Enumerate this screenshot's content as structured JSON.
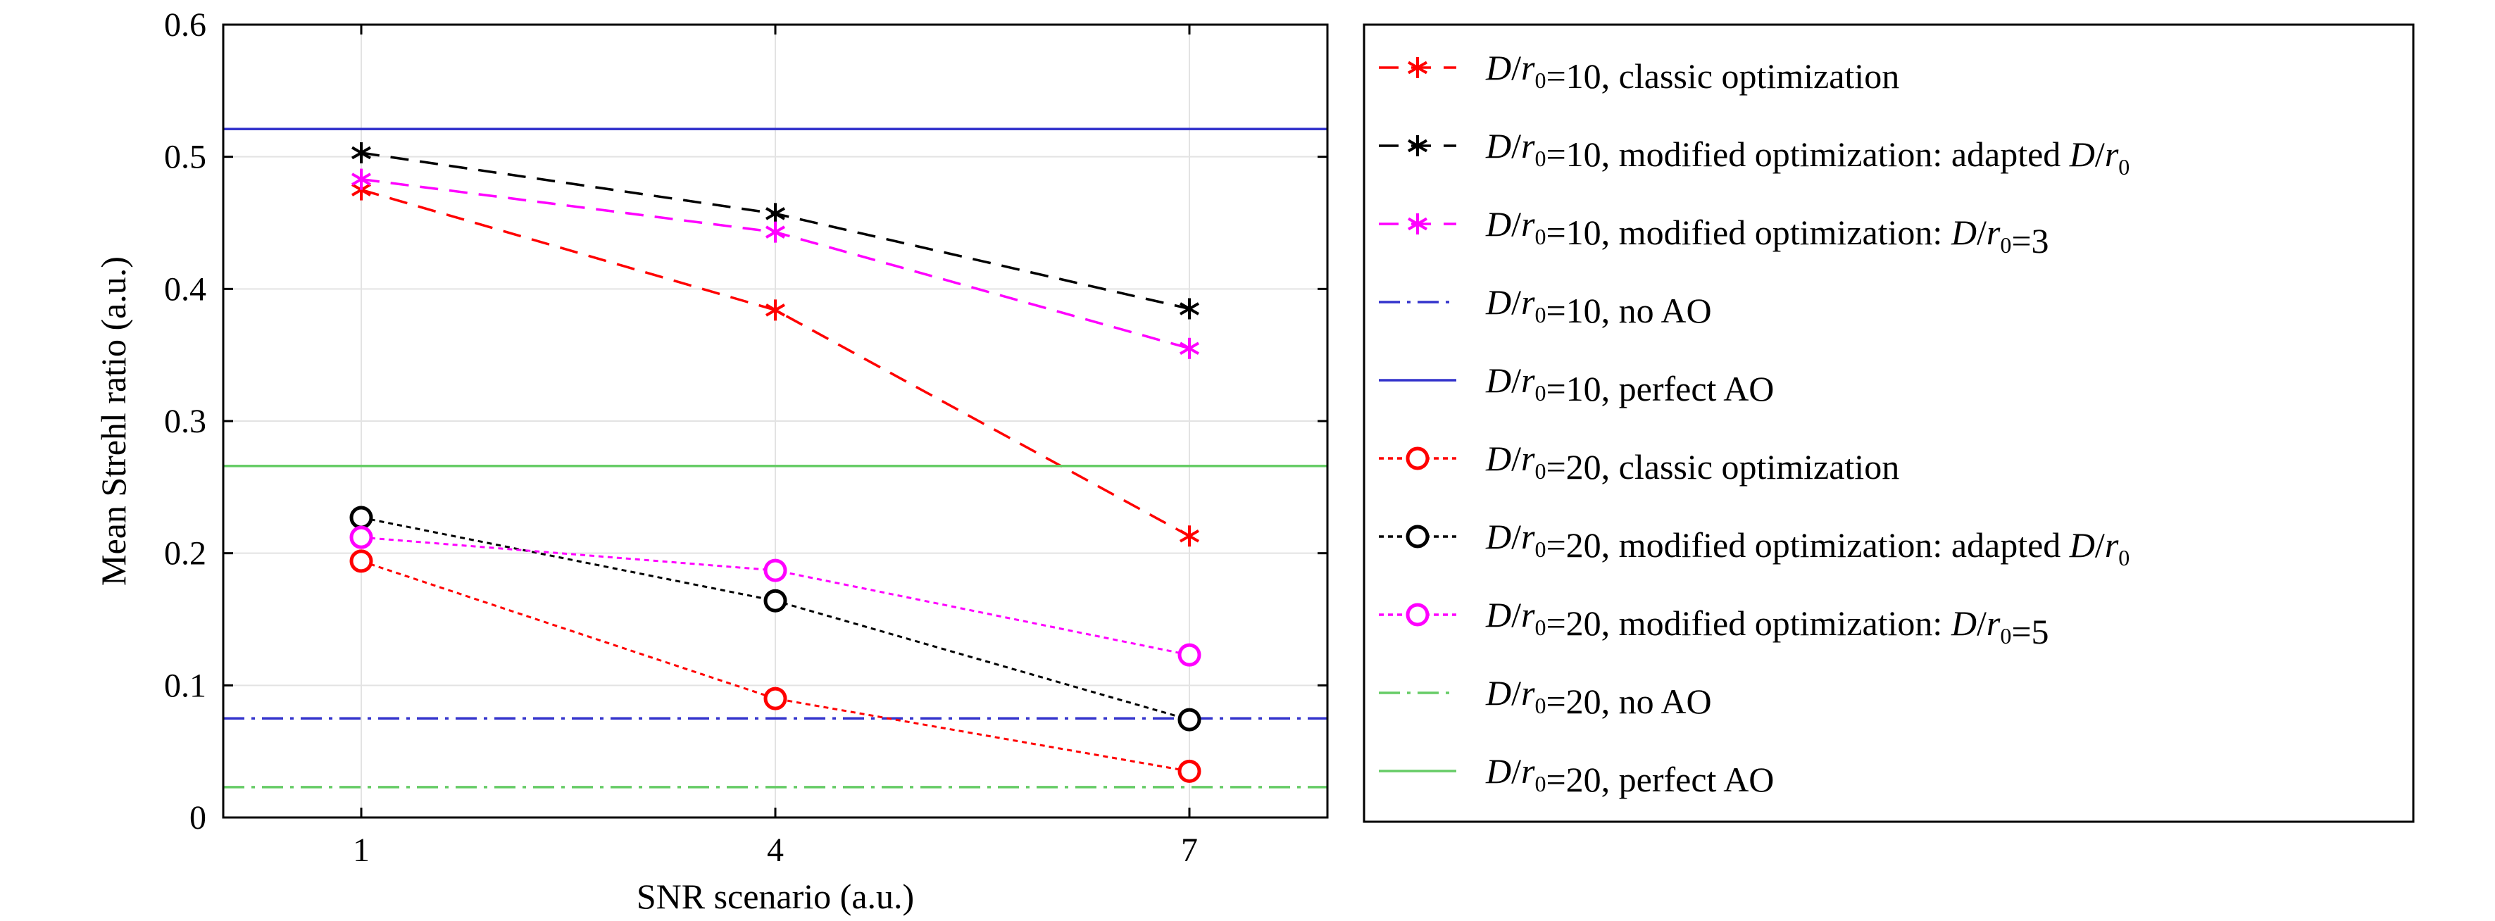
{
  "chart_data": {
    "type": "line",
    "xlabel": "SNR scenario (a.u.)",
    "ylabel": "Mean Strehl ratio (a.u.)",
    "xlim": [
      0,
      8
    ],
    "ylim": [
      0,
      0.6
    ],
    "xticks": [
      1,
      4,
      7
    ],
    "yticks": [
      0,
      0.1,
      0.2,
      0.3,
      0.4,
      0.5,
      0.6
    ],
    "ytick_labels": [
      "0",
      "0.1",
      "0.2",
      "0.3",
      "0.4",
      "0.5",
      "0.6"
    ],
    "grid": true,
    "legend_position": "outside-right",
    "x": [
      1,
      4,
      7
    ],
    "series": [
      {
        "name_parts": [
          "D",
          "/",
          "r",
          "0",
          "=10, classic optimization"
        ],
        "values": [
          0.475,
          0.384,
          0.213
        ],
        "color": "#ff0000",
        "linestyle": "dashed",
        "marker": "asterisk"
      },
      {
        "name_parts": [
          "D",
          "/",
          "r",
          "0",
          "=10, modified optimization: adapted ",
          "D",
          "/",
          "r",
          "0"
        ],
        "values": [
          0.503,
          0.457,
          0.385
        ],
        "color": "#000000",
        "linestyle": "dashed",
        "marker": "asterisk"
      },
      {
        "name_parts": [
          "D",
          "/",
          "r",
          "0",
          "=10, modified optimization: ",
          "D",
          "/",
          "r",
          "0",
          "=3"
        ],
        "values": [
          0.483,
          0.443,
          0.355
        ],
        "color": "#ff00ff",
        "linestyle": "dashed",
        "marker": "asterisk"
      },
      {
        "name_parts": [
          "D",
          "/",
          "r",
          "0",
          "=10, no AO"
        ],
        "constant": 0.075,
        "color": "#3333cc",
        "linestyle": "dashdot",
        "marker": "none"
      },
      {
        "name_parts": [
          "D",
          "/",
          "r",
          "0",
          "=10, perfect AO"
        ],
        "constant": 0.521,
        "color": "#3333cc",
        "linestyle": "solid",
        "marker": "none"
      },
      {
        "name_parts": [
          "D",
          "/",
          "r",
          "0",
          "=20, classic optimization"
        ],
        "values": [
          0.194,
          0.09,
          0.035
        ],
        "color": "#ff0000",
        "linestyle": "dotted",
        "marker": "circle"
      },
      {
        "name_parts": [
          "D",
          "/",
          "r",
          "0",
          "=20, modified optimization: adapted ",
          "D",
          "/",
          "r",
          "0"
        ],
        "values": [
          0.227,
          0.164,
          0.074
        ],
        "color": "#000000",
        "linestyle": "dotted",
        "marker": "circle"
      },
      {
        "name_parts": [
          "D",
          "/",
          "r",
          "0",
          "=20, modified optimization: ",
          "D",
          "/",
          "r",
          "0",
          "=5"
        ],
        "values": [
          0.212,
          0.187,
          0.123
        ],
        "color": "#ff00ff",
        "linestyle": "dotted",
        "marker": "circle"
      },
      {
        "name_parts": [
          "D",
          "/",
          "r",
          "0",
          "=20, no AO"
        ],
        "constant": 0.023,
        "color": "#66cc66",
        "linestyle": "dashdot",
        "marker": "none"
      },
      {
        "name_parts": [
          "D",
          "/",
          "r",
          "0",
          "=20, perfect AO"
        ],
        "constant": 0.266,
        "color": "#66cc66",
        "linestyle": "solid",
        "marker": "none"
      }
    ]
  }
}
